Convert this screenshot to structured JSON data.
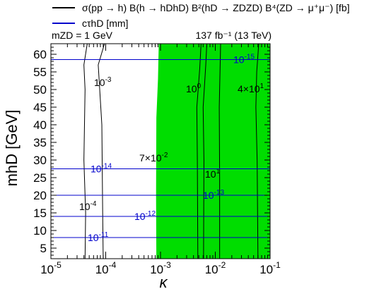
{
  "legend": {
    "black_text": "σ(pp → h) B(h → hDhD) B²(hD → ZDZD) B⁴(ZD → μ⁺μ⁻) [fb]",
    "blue_text": "cτhD [mm]"
  },
  "annotations": {
    "mass_label": "mZD = 1 GeV",
    "lumi_label": "137 fb⁻¹ (13 TeV)"
  },
  "colors": {
    "fill": "#00dd00",
    "ctau": "#0000cc",
    "xsec": "#000000",
    "frame": "#000000"
  },
  "chart_data": {
    "type": "contour",
    "xlabel": "κ",
    "ylabel": "mhD [GeV]",
    "x_scale": "log",
    "xlim": [
      1e-05,
      0.1
    ],
    "ylim": [
      2,
      63
    ],
    "x_ticks": [
      {
        "value": 1e-05,
        "base": "10",
        "exp": "-5"
      },
      {
        "value": 0.0001,
        "base": "10",
        "exp": "-4"
      },
      {
        "value": 0.001,
        "base": "10",
        "exp": "-3"
      },
      {
        "value": 0.01,
        "base": "10",
        "exp": "-2"
      },
      {
        "value": 0.1,
        "base": "10",
        "exp": "-1"
      }
    ],
    "y_ticks": [
      5,
      10,
      15,
      20,
      25,
      30,
      35,
      40,
      45,
      50,
      55,
      60
    ],
    "excluded_region": {
      "boundary": [
        [
          0.00084,
          2
        ],
        [
          0.00083,
          20
        ],
        [
          0.00084,
          42
        ],
        [
          0.0009,
          53
        ],
        [
          0.00093,
          63
        ]
      ],
      "right_edge": 0.1
    },
    "xsec_contours": [
      {
        "label_base": "10",
        "label_exp": "-4",
        "points": [
          [
            4.2e-05,
            2
          ],
          [
            4.3e-05,
            15
          ],
          [
            4e-05,
            30
          ],
          [
            4.2e-05,
            50
          ],
          [
            4e-05,
            57
          ],
          [
            4.6e-05,
            63
          ]
        ]
      },
      {
        "label_base": "10",
        "label_exp": "-3",
        "points": [
          [
            9e-05,
            2
          ],
          [
            8.8e-05,
            15
          ],
          [
            8.5e-05,
            40
          ],
          [
            7.3e-05,
            57
          ],
          [
            9.5e-05,
            63
          ]
        ]
      },
      {
        "label_base": "7×10",
        "label_exp": "-2",
        "points": [
          [
            0.0048,
            2
          ],
          [
            0.0047,
            30
          ],
          [
            0.0046,
            45
          ],
          [
            0.0052,
            56
          ],
          [
            0.0055,
            63
          ]
        ]
      },
      {
        "label_base": "10",
        "label_exp": "0",
        "points": [
          [
            0.0061,
            2
          ],
          [
            0.0062,
            30
          ],
          [
            0.006,
            45
          ],
          [
            0.0067,
            57
          ],
          [
            0.007,
            63
          ]
        ]
      },
      {
        "label_base": "10",
        "label_exp": "1",
        "points": [
          [
            0.012,
            2
          ],
          [
            0.012,
            25
          ],
          [
            0.0118,
            45
          ],
          [
            0.0125,
            63
          ]
        ]
      },
      {
        "label_base": "4×10",
        "label_exp": "1",
        "points": [
          [
            0.06,
            2
          ],
          [
            0.058,
            30
          ],
          [
            0.055,
            45
          ],
          [
            0.057,
            55
          ],
          [
            0.062,
            63
          ]
        ]
      }
    ],
    "ctau_contours": [
      {
        "label_base": "10",
        "label_exp": "-15",
        "y": 58.5
      },
      {
        "label_base": "10",
        "label_exp": "-14",
        "y": 27.5
      },
      {
        "label_base": "10",
        "label_exp": "-13",
        "y": 20
      },
      {
        "label_base": "10",
        "label_exp": "-12",
        "y": 14
      },
      {
        "label_base": "10",
        "label_exp": "-11",
        "y": 8
      }
    ]
  }
}
